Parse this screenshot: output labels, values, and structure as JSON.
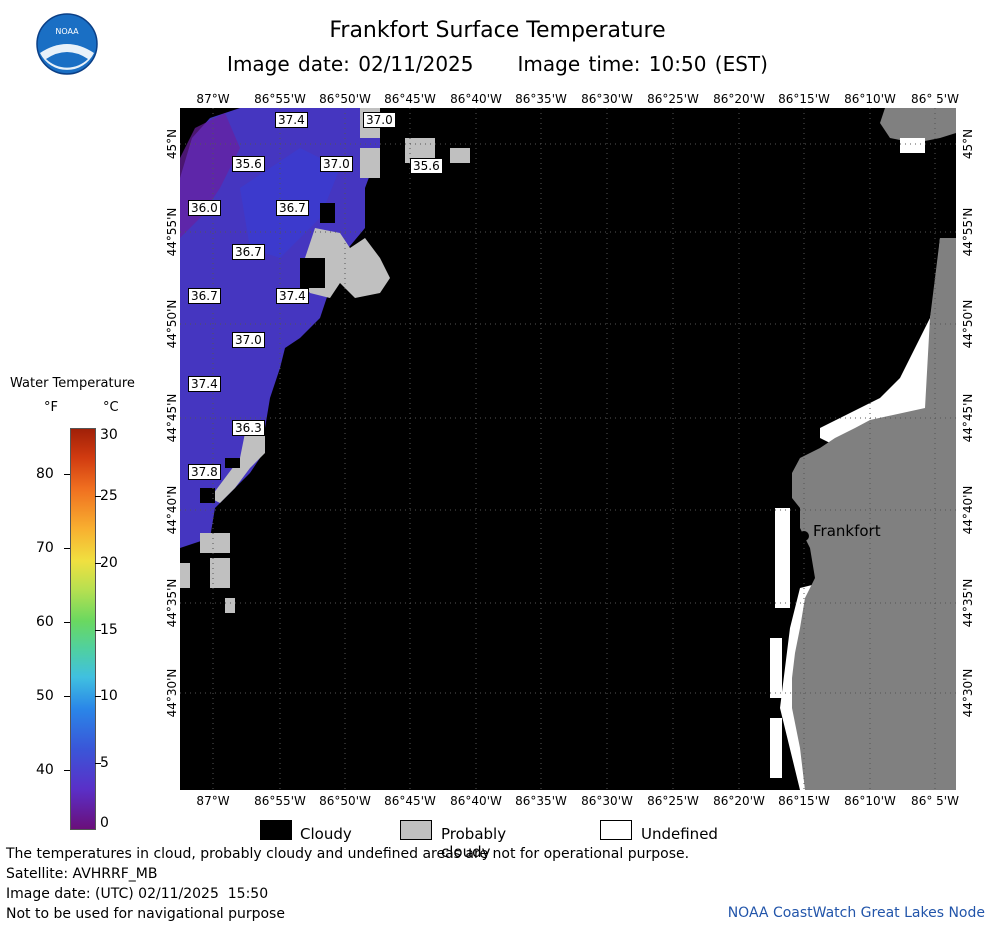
{
  "header": {
    "title": "Frankfort Surface Temperature",
    "image_date": "Image date: 02/11/2025",
    "image_time": "Image time: 10:50 (EST)"
  },
  "logo": {
    "text": "NOAA",
    "icon": "noaa-logo-icon"
  },
  "longitude_labels": [
    "87°W",
    "86°55'W",
    "86°50'W",
    "86°45'W",
    "86°40'W",
    "86°35'W",
    "86°30'W",
    "86°25'W",
    "86°20'W",
    "86°15'W",
    "86°10'W",
    "86° 5'W"
  ],
  "latitude_labels": [
    "45°N",
    "44°55'N",
    "44°50'N",
    "44°45'N",
    "44°40'N",
    "44°35'N",
    "44°30'N"
  ],
  "temperature_labels": [
    "37.4",
    "37.0",
    "35.6",
    "37.0",
    "35.6",
    "36.0",
    "36.7",
    "36.7",
    "36.7",
    "37.4",
    "37.0",
    "37.4",
    "36.3",
    "37.8"
  ],
  "place": {
    "name": "Frankfort",
    "icon": "city-marker-icon"
  },
  "legend": {
    "title": "Water Temperature",
    "unit_f": "°F",
    "unit_c": "°C",
    "f_ticks": [
      "80",
      "70",
      "60",
      "50",
      "40"
    ],
    "c_ticks": [
      "30",
      "25",
      "20",
      "15",
      "10",
      "5",
      "0"
    ],
    "colors": {
      "cloudy": "#000000",
      "probably_cloudy": "#c0c0c0",
      "undefined": "#ffffff",
      "land": "#808080"
    },
    "cloudy": "Cloudy",
    "probably_cloudy": "Probably cloudy",
    "undefined": "Undefined"
  },
  "footer": {
    "disclaimer": "The temperatures in cloud, probably cloudy and undefined areas are not for operational purpose.",
    "satellite": "Satellite: AVHRRF_MB",
    "image_date_utc": "Image date: (UTC) 02/11/2025  15:50",
    "navigation": "Not to be used for navigational purpose",
    "credit": "NOAA CoastWatch Great Lakes Node"
  }
}
